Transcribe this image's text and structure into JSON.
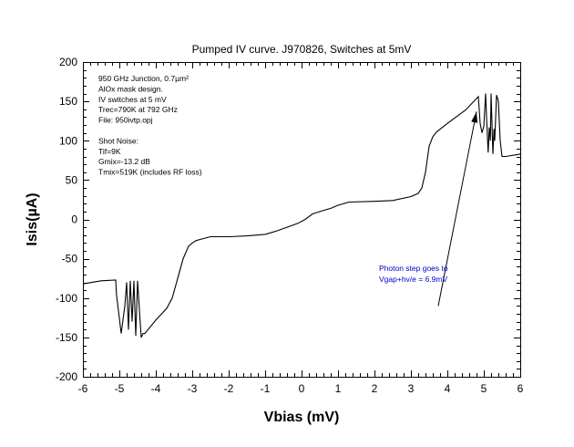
{
  "chart_data": {
    "type": "line",
    "title": "Pumped IV curve. J970826, Switches at 5mV",
    "xlabel": "Vbias (mV)",
    "ylabel": "Isis(µA)",
    "xlim": [
      -6,
      6
    ],
    "ylim": [
      -200,
      200
    ],
    "x_ticks": [
      -6,
      -5,
      -4,
      -3,
      -2,
      -1,
      0,
      1,
      2,
      3,
      4,
      5,
      6
    ],
    "x_tick_labels": [
      "-6",
      "-5",
      "-4",
      "-3",
      "-2",
      "-1",
      "0",
      "1",
      "2",
      "3",
      "4",
      "5",
      "6"
    ],
    "y_ticks": [
      200,
      150,
      100,
      50,
      0,
      -50,
      -100,
      -150,
      -200
    ],
    "y_tick_labels": [
      "200",
      "150",
      "100",
      "50",
      "0",
      "-50",
      "-100",
      "-150",
      "-200"
    ],
    "x_minor_per_major": 5,
    "y_minor_per_major": 5,
    "grid": false,
    "series": [
      {
        "name": "Pumped IV",
        "color": "#000000",
        "x": [
          -6.0,
          -5.5,
          -5.1,
          -5.08,
          -4.95,
          -4.85,
          -4.8,
          -4.75,
          -4.7,
          -4.65,
          -4.6,
          -4.55,
          -4.5,
          -4.45,
          -4.4,
          -4.35,
          -4.3,
          -4.0,
          -3.7,
          -3.55,
          -3.4,
          -3.25,
          -3.1,
          -3.0,
          -2.9,
          -2.75,
          -2.5,
          -2.0,
          -1.5,
          -1.0,
          -0.7,
          -0.4,
          -0.1,
          0.1,
          0.3,
          0.5,
          0.8,
          1.0,
          1.3,
          2.0,
          2.5,
          3.0,
          3.2,
          3.3,
          3.4,
          3.5,
          3.6,
          3.7,
          4.0,
          4.5,
          4.85,
          4.9,
          4.95,
          5.0,
          5.05,
          5.08,
          5.12,
          5.15,
          5.18,
          5.2,
          5.25,
          5.28,
          5.3,
          5.35,
          5.4,
          5.45,
          5.5,
          5.6,
          6.0
        ],
        "y": [
          -82,
          -78,
          -77,
          -95,
          -145,
          -110,
          -80,
          -140,
          -78,
          -130,
          -78,
          -148,
          -78,
          -115,
          -150,
          -145,
          -145,
          -128,
          -113,
          -100,
          -75,
          -50,
          -34,
          -30,
          -27,
          -25,
          -22,
          -22,
          -21,
          -19,
          -15,
          -10,
          -5,
          0,
          7,
          10,
          14,
          18,
          22,
          23,
          24,
          29,
          33,
          40,
          60,
          93,
          105,
          111,
          122,
          139,
          156,
          122,
          110,
          118,
          160,
          125,
          85,
          117,
          100,
          160,
          83,
          115,
          100,
          158,
          150,
          100,
          80,
          80,
          83
        ]
      }
    ],
    "legend": "none",
    "notes": [
      "950 GHz Junction, 0.7µm²",
      "AlOx mask design.",
      "IV switches at 5 mV",
      "Trec=790K at 792 GHz",
      "File: 950ivtp.opj",
      "",
      "Shot Noise:",
      " Tif=9K",
      " Gmix=-13.2 dB",
      " Tmix=519K (includes RF loss)"
    ],
    "annotation": {
      "lines": [
        "Photon step goes to",
        "Vgap+hv/e = 6.9mV"
      ],
      "color": "#0000cc",
      "arrow_from": [
        3.75,
        -110
      ],
      "arrow_to": [
        4.8,
        137
      ]
    }
  }
}
